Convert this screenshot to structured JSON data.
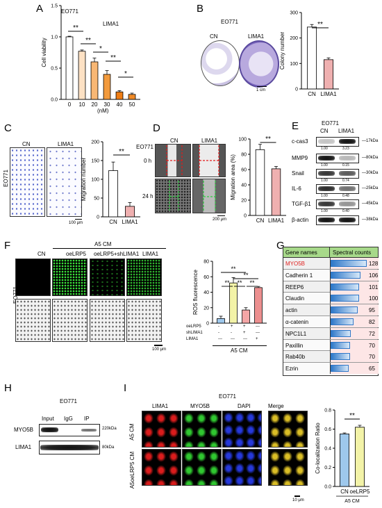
{
  "panels": {
    "A": "A",
    "B": "B",
    "C": "C",
    "D": "D",
    "E": "E",
    "F": "F",
    "G": "G",
    "H": "H",
    "I": "I"
  },
  "panelA": {
    "cell_line": "EO771",
    "condition": "LIMA1",
    "xunit": "(nM)",
    "chart_data": {
      "type": "bar",
      "categories": [
        "0",
        "10",
        "20",
        "30",
        "40",
        "50"
      ],
      "values": [
        1.0,
        0.77,
        0.6,
        0.4,
        0.12,
        0.08
      ],
      "errors": [
        0.01,
        0.02,
        0.06,
        0.06,
        0.02,
        0.02
      ],
      "ylabel": "Cell viability",
      "yticks": [
        "0.0",
        "0.5",
        "1.0",
        "1.5"
      ],
      "ylim": [
        0,
        1.5
      ],
      "colors": [
        "#ffffff",
        "#fde1c4",
        "#f8b774",
        "#f29a3c",
        "#ef7d14",
        "#f08a26"
      ],
      "sig": [
        "**",
        "**",
        "*",
        "**",
        "*"
      ]
    }
  },
  "panelB": {
    "cell_line": "EO771",
    "cn": "CN",
    "lima1": "LIMA1",
    "scale": "1 cm",
    "chart_data": {
      "type": "bar",
      "categories": [
        "CN",
        "LIMA1"
      ],
      "values": [
        243,
        115
      ],
      "errors": [
        10,
        7
      ],
      "ylabel": "Colony number",
      "yticks": [
        "0",
        "100",
        "200",
        "300"
      ],
      "ylim": [
        0,
        300
      ],
      "colors": [
        "#ffffff",
        "#efb0b0"
      ],
      "sig": "**"
    }
  },
  "panelC": {
    "cell_line": "EO771",
    "cn": "CN",
    "lima1": "LIMA1",
    "scale": "100 μm",
    "chart_data": {
      "type": "bar",
      "categories": [
        "CN",
        "LIMA1"
      ],
      "values": [
        123,
        28
      ],
      "errors": [
        23,
        10
      ],
      "ylabel": "Migration number",
      "yticks": [
        "0",
        "50",
        "100",
        "150",
        "200"
      ],
      "ylim": [
        0,
        200
      ],
      "colors": [
        "#ffffff",
        "#efb0b0"
      ],
      "sig": "**"
    }
  },
  "panelD": {
    "cell_line": "EO771",
    "cn": "CN",
    "lima1": "LIMA1",
    "t0": "0 h",
    "t24": "24 h",
    "scale": "200 μm",
    "chart_data": {
      "type": "bar",
      "categories": [
        "CN",
        "LIMA1"
      ],
      "values": [
        86,
        61
      ],
      "errors": [
        7,
        3
      ],
      "ylabel": "Migration area (%)",
      "yticks": [
        "0",
        "20",
        "40",
        "60",
        "80",
        "100"
      ],
      "ylim": [
        0,
        100
      ],
      "colors": [
        "#ffffff",
        "#efb0b0"
      ],
      "sig": "**"
    }
  },
  "panelE": {
    "cell_line": "EO771",
    "cn": "CN",
    "lima1": "LIMA1",
    "rows": [
      {
        "name": "c-cas3",
        "kda": "17kDa",
        "cn": "1.00",
        "lima": "3.23"
      },
      {
        "name": "MMP9",
        "kda": "80kDa",
        "cn": "1.00",
        "lima": "0.15"
      },
      {
        "name": "Snail",
        "kda": "30kDa",
        "cn": "1.00",
        "lima": "0.74"
      },
      {
        "name": "IL-6",
        "kda": "25kDa",
        "cn": "1.00",
        "lima": "0.48"
      },
      {
        "name": "TGF-β1",
        "kda": "45kDa",
        "cn": "1.00",
        "lima": "0.40"
      },
      {
        "name": "β-actin",
        "kda": "38kDa",
        "cn": "",
        "lima": ""
      }
    ]
  },
  "panelF": {
    "header": "A5 CM",
    "cell_line": "EO771",
    "cols": [
      "CN",
      "oeLRP5",
      "oeLRP5+shLIMA1",
      "LIMA1"
    ],
    "scale": "100 μm",
    "chart_data": {
      "type": "bar",
      "categories": [
        "1",
        "2",
        "3",
        "4"
      ],
      "values": [
        6,
        52,
        17,
        46
      ],
      "errors": [
        3,
        7,
        3,
        1.5
      ],
      "ylabel": "ROS fluorescence",
      "yticks": [
        "0",
        "20",
        "40",
        "60",
        "80"
      ],
      "ylim": [
        0,
        80
      ],
      "colors": [
        "#9ec8ec",
        "#f3f3a8",
        "#f4a6a6",
        "#ec8f8f"
      ],
      "sig_top": [
        "**",
        "**"
      ],
      "sig_mid": [
        "**",
        "**",
        "**"
      ]
    },
    "treat": [
      {
        "name": "oeLRP5",
        "vals": [
          "-",
          "+",
          "+",
          "---"
        ]
      },
      {
        "name": "shLIMA1",
        "vals": [
          "-",
          "-",
          "+",
          "---"
        ]
      },
      {
        "name": "LIMA1",
        "vals": [
          "---",
          "---",
          "---",
          "+"
        ]
      }
    ],
    "footer": "A5 CM"
  },
  "panelG": {
    "h1": "Gene names",
    "h2": "Spectral counts",
    "rows": [
      {
        "gene": "MYO5B",
        "count": "128",
        "v": 128,
        "red": true
      },
      {
        "gene": "Cadherin 1",
        "count": "106",
        "v": 106
      },
      {
        "gene": "REEP6",
        "count": "101",
        "v": 101
      },
      {
        "gene": "Claudin",
        "count": "100",
        "v": 100
      },
      {
        "gene": "actin",
        "count": "95",
        "v": 95
      },
      {
        "gene": "α-catenin",
        "count": "82",
        "v": 82
      },
      {
        "gene": "NPC1L1",
        "count": "72",
        "v": 72
      },
      {
        "gene": "Paxillin",
        "count": "70",
        "v": 70
      },
      {
        "gene": "Rab40b",
        "count": "70",
        "v": 70
      },
      {
        "gene": "Ezrin",
        "count": "65",
        "v": 65
      }
    ]
  },
  "panelH": {
    "cell_line": "EO771",
    "cols": [
      "Input",
      "IgG",
      "IP"
    ],
    "rows": [
      {
        "name": "MYO5B",
        "kda": "220kDa"
      },
      {
        "name": "LIMA1",
        "kda": "80kDa"
      }
    ]
  },
  "panelI": {
    "cell_line": "EO771",
    "cols": [
      "LIMA1",
      "MYO5B",
      "DAPI",
      "Merge"
    ],
    "rows": [
      "A5 CM",
      "A5oeLRP5 CM"
    ],
    "scale": "10 μm",
    "chart_data": {
      "type": "bar",
      "categories": [
        "CN",
        "oeLRP5"
      ],
      "values": [
        0.55,
        0.62
      ],
      "errors": [
        0.01,
        0.02
      ],
      "ylabel": "Co-localization Ratio",
      "yticks": [
        "0.0",
        "0.2",
        "0.4",
        "0.6",
        "0.8"
      ],
      "ylim": [
        0,
        0.8
      ],
      "colors": [
        "#9ec8ec",
        "#f3f3a8"
      ],
      "sig": "**",
      "footer": "A5 CM"
    }
  }
}
